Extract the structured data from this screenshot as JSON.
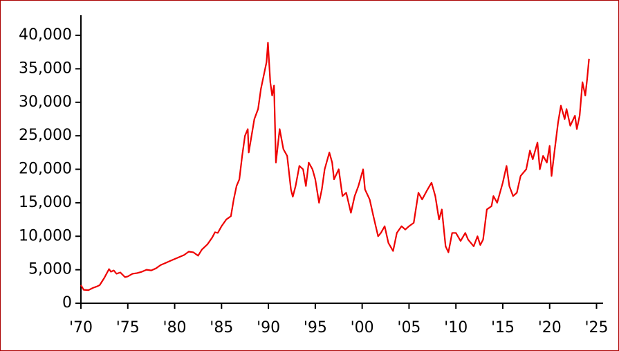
{
  "chart_data": {
    "type": "line",
    "x": [
      1970.0,
      1970.3,
      1970.8,
      1971.3,
      1971.7,
      1972.0,
      1972.5,
      1973.0,
      1973.2,
      1973.5,
      1973.8,
      1974.2,
      1974.7,
      1975.0,
      1975.5,
      1976.0,
      1976.5,
      1977.0,
      1977.5,
      1978.0,
      1978.5,
      1979.0,
      1979.5,
      1980.0,
      1980.5,
      1981.0,
      1981.5,
      1982.0,
      1982.5,
      1982.9,
      1983.5,
      1984.0,
      1984.3,
      1984.6,
      1985.0,
      1985.5,
      1986.0,
      1986.3,
      1986.6,
      1986.9,
      1987.2,
      1987.5,
      1987.8,
      1987.9,
      1988.2,
      1988.5,
      1988.9,
      1989.2,
      1989.5,
      1989.8,
      1989.95,
      1990.2,
      1990.4,
      1990.6,
      1990.8,
      1991.2,
      1991.6,
      1992.0,
      1992.4,
      1992.6,
      1992.9,
      1993.3,
      1993.7,
      1994.0,
      1994.3,
      1994.7,
      1995.0,
      1995.4,
      1995.7,
      1996.0,
      1996.5,
      1996.8,
      1997.0,
      1997.5,
      1997.9,
      1998.3,
      1998.8,
      1999.2,
      1999.6,
      2000.1,
      2000.3,
      2000.8,
      2001.2,
      2001.7,
      2002.0,
      2002.4,
      2002.8,
      2003.3,
      2003.7,
      2004.2,
      2004.6,
      2005.0,
      2005.5,
      2006.0,
      2006.4,
      2006.9,
      2007.4,
      2007.8,
      2008.2,
      2008.5,
      2008.9,
      2009.2,
      2009.6,
      2010.0,
      2010.5,
      2011.0,
      2011.3,
      2011.9,
      2012.3,
      2012.6,
      2012.9,
      2013.3,
      2013.8,
      2014.0,
      2014.4,
      2015.0,
      2015.4,
      2015.7,
      2016.1,
      2016.5,
      2016.9,
      2017.5,
      2017.9,
      2018.2,
      2018.7,
      2018.95,
      2019.3,
      2019.7,
      2020.0,
      2020.2,
      2020.5,
      2020.9,
      2021.2,
      2021.6,
      2021.8,
      2022.2,
      2022.7,
      2022.9,
      2023.2,
      2023.5,
      2023.8,
      2024.0,
      2024.2
    ],
    "series": [
      {
        "color": "#ee0000",
        "values": [
          2700,
          2000,
          1950,
          2300,
          2500,
          2700,
          3800,
          5100,
          4700,
          4900,
          4400,
          4600,
          3900,
          4000,
          4400,
          4500,
          4700,
          5000,
          4900,
          5200,
          5700,
          6000,
          6300,
          6600,
          6900,
          7200,
          7700,
          7600,
          7100,
          8000,
          8800,
          9800,
          10600,
          10500,
          11500,
          12500,
          13000,
          15500,
          17500,
          18500,
          22000,
          25000,
          26000,
          22500,
          25000,
          27500,
          29000,
          32000,
          34000,
          36000,
          38900,
          33000,
          31000,
          32500,
          21000,
          26000,
          23000,
          22000,
          17000,
          15900,
          17500,
          20500,
          20000,
          17500,
          21000,
          20000,
          18500,
          15000,
          17000,
          20000,
          22500,
          21000,
          18500,
          20000,
          16000,
          16500,
          13500,
          16000,
          17500,
          20000,
          17000,
          15500,
          13000,
          10000,
          10500,
          11500,
          9000,
          7800,
          10500,
          11500,
          11000,
          11500,
          12000,
          16500,
          15500,
          16800,
          18000,
          16000,
          12500,
          14000,
          8500,
          7600,
          10500,
          10500,
          9300,
          10500,
          9500,
          8500,
          10000,
          8700,
          9500,
          14000,
          14500,
          16000,
          15000,
          18000,
          20500,
          17500,
          16000,
          16500,
          19000,
          20000,
          22800,
          21500,
          24000,
          20000,
          22000,
          21000,
          23500,
          19000,
          22500,
          27000,
          29500,
          27500,
          29000,
          26500,
          28000,
          26000,
          28000,
          33000,
          31000,
          33500,
          36500
        ]
      }
    ],
    "xlim": [
      1970,
      2025.7
    ],
    "ylim": [
      0,
      43000
    ],
    "xticks": [
      {
        "value": 1970,
        "label": "'70"
      },
      {
        "value": 1975,
        "label": "'75"
      },
      {
        "value": 1980,
        "label": "'80"
      },
      {
        "value": 1985,
        "label": "'85"
      },
      {
        "value": 1990,
        "label": "'90"
      },
      {
        "value": 1995,
        "label": "'95"
      },
      {
        "value": 2000,
        "label": "'00"
      },
      {
        "value": 2005,
        "label": "'05"
      },
      {
        "value": 2010,
        "label": "'10"
      },
      {
        "value": 2015,
        "label": "'15"
      },
      {
        "value": 2020,
        "label": "'20"
      },
      {
        "value": 2025,
        "label": "'25"
      }
    ],
    "yticks": [
      0,
      {
        "value": 5000,
        "label": "5,000"
      },
      {
        "value": 10000,
        "label": "10,000"
      },
      {
        "value": 15000,
        "label": "15,000"
      },
      {
        "value": 20000,
        "label": "20,000"
      },
      {
        "value": 25000,
        "label": "25,000"
      },
      {
        "value": 30000,
        "label": "30,000"
      },
      {
        "value": 35000,
        "label": "35,000"
      },
      {
        "value": 40000,
        "label": "40,000"
      }
    ]
  }
}
